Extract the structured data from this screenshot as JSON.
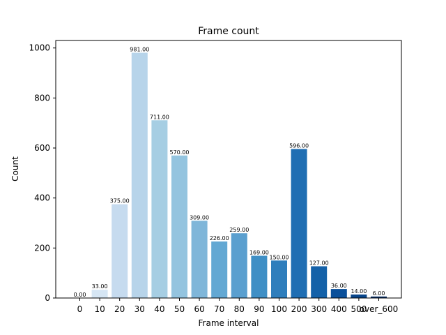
{
  "chart_data": {
    "type": "bar",
    "title": "Frame count",
    "xlabel": "Frame interval",
    "ylabel": "Count",
    "categories": [
      "0",
      "10",
      "20",
      "30",
      "40",
      "50",
      "60",
      "70",
      "80",
      "90",
      "100",
      "200",
      "300",
      "400",
      "500",
      "over_600"
    ],
    "values": [
      0,
      33,
      375,
      981,
      711,
      570,
      309,
      226,
      259,
      169,
      150,
      596,
      127,
      36,
      14,
      6
    ],
    "data_labels": [
      "0.00",
      "33.00",
      "375.00",
      "981.00",
      "711.00",
      "570.00",
      "309.00",
      "226.00",
      "259.00",
      "169.00",
      "150.00",
      "596.00",
      "127.00",
      "36.00",
      "14.00",
      "6.00"
    ],
    "colors": [
      "#deebf7",
      "#d6e6f4",
      "#c6dbef",
      "#b7d4ea",
      "#a6cee3",
      "#94c4df",
      "#7fb6d9",
      "#63a8d3",
      "#5a9fcf",
      "#3f8fc5",
      "#2f7ebc",
      "#1f6eb3",
      "#1461a8",
      "#0b509a",
      "#08458a",
      "#08306b"
    ],
    "yticks": [
      0,
      200,
      400,
      600,
      800,
      1000
    ],
    "ylim": [
      0,
      1030
    ],
    "grid": false,
    "legend": "none"
  }
}
